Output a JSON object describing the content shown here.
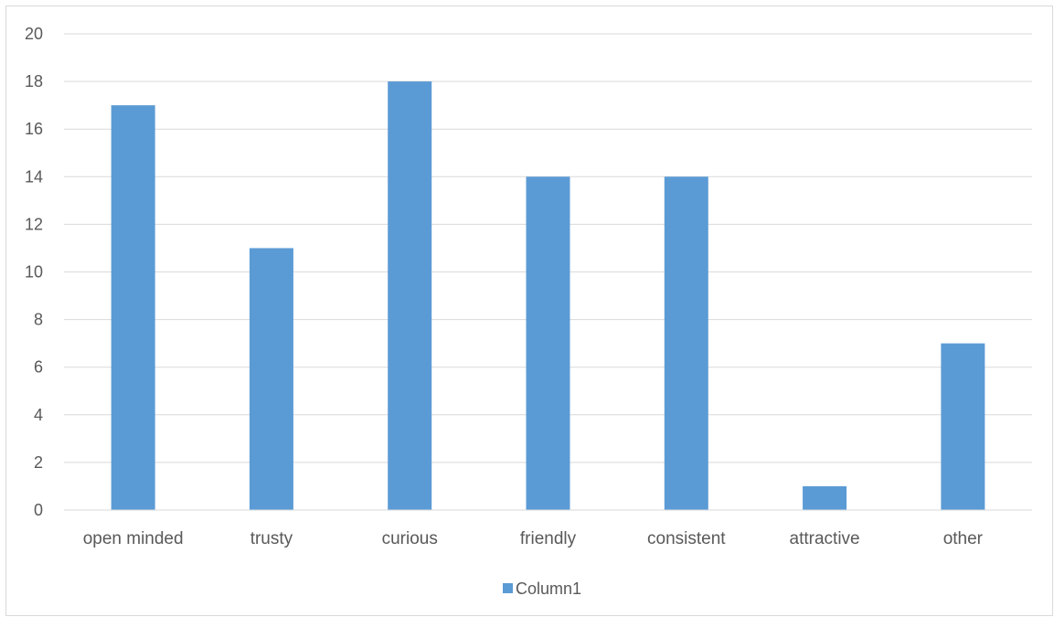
{
  "chart_data": {
    "type": "bar",
    "categories": [
      "open minded",
      "trusty",
      "curious",
      "friendly",
      "consistent",
      "attractive",
      "other"
    ],
    "series": [
      {
        "name": "Column1",
        "values": [
          17,
          11,
          18,
          14,
          14,
          1,
          7
        ],
        "color": "#5b9bd5"
      }
    ],
    "yticks": [
      "0",
      "2",
      "4",
      "6",
      "8",
      "10",
      "12",
      "14",
      "16",
      "18",
      "20"
    ],
    "ylim": [
      0,
      20
    ],
    "grid": true,
    "legend": "bottom",
    "colors": {
      "gridline": "#d9d9d9",
      "axis": "#d9d9d9",
      "text": "#595959",
      "frame": "#d9d9d9"
    }
  }
}
